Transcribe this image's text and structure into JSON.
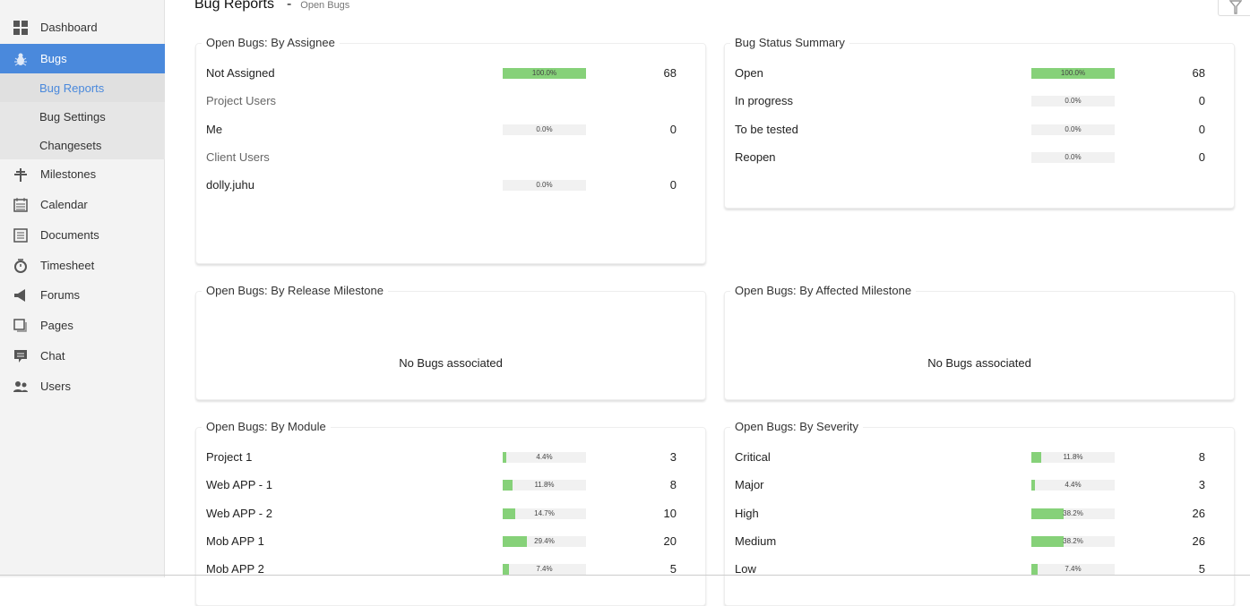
{
  "header": {
    "title": "Bug Reports",
    "separator": "-",
    "breadcrumb": "Open Bugs",
    "filter_icon": "filter-icon"
  },
  "sidebar": {
    "items": [
      {
        "label": "Dashboard",
        "icon": "dashboard-icon"
      },
      {
        "label": "Bugs",
        "icon": "bug-icon",
        "active": true
      },
      {
        "label": "Milestones",
        "icon": "milestone-icon"
      },
      {
        "label": "Calendar",
        "icon": "calendar-icon"
      },
      {
        "label": "Documents",
        "icon": "document-icon"
      },
      {
        "label": "Timesheet",
        "icon": "timer-icon"
      },
      {
        "label": "Forums",
        "icon": "megaphone-icon"
      },
      {
        "label": "Pages",
        "icon": "pages-icon"
      },
      {
        "label": "Chat",
        "icon": "chat-icon"
      },
      {
        "label": "Users",
        "icon": "users-icon"
      }
    ],
    "subitems": [
      {
        "label": "Bug Reports",
        "current": true
      },
      {
        "label": "Bug Settings"
      },
      {
        "label": "Changesets"
      }
    ],
    "active_color": "#4a89dc"
  },
  "bar_color": "#86d179",
  "cards": [
    {
      "title": "Open Bugs: By Assignee",
      "rows": [
        {
          "label": "Not Assigned",
          "percent": "100.0%",
          "value": 100,
          "count": "68"
        },
        {
          "label": "Project Users",
          "header": true
        },
        {
          "label": "Me",
          "percent": "0.0%",
          "value": 0,
          "count": "0"
        },
        {
          "label": "Client Users",
          "header": true
        },
        {
          "label": "dolly.juhu",
          "percent": "0.0%",
          "value": 0,
          "count": "0"
        }
      ]
    },
    {
      "title": "Bug Status Summary",
      "rows": [
        {
          "label": "Open",
          "percent": "100.0%",
          "value": 100,
          "count": "68"
        },
        {
          "label": "In progress",
          "percent": "0.0%",
          "value": 0,
          "count": "0"
        },
        {
          "label": "To be tested",
          "percent": "0.0%",
          "value": 0,
          "count": "0"
        },
        {
          "label": "Reopen",
          "percent": "0.0%",
          "value": 0,
          "count": "0"
        }
      ]
    },
    {
      "title": "Open Bugs: By Release Milestone",
      "empty": "No Bugs associated"
    },
    {
      "title": "Open Bugs: By Affected Milestone",
      "empty": "No Bugs associated"
    },
    {
      "title": "Open Bugs: By Module",
      "rows": [
        {
          "label": "Project 1",
          "percent": "4.4%",
          "value": 4.4,
          "count": "3"
        },
        {
          "label": "Web APP - 1",
          "percent": "11.8%",
          "value": 11.8,
          "count": "8"
        },
        {
          "label": "Web APP - 2",
          "percent": "14.7%",
          "value": 14.7,
          "count": "10"
        },
        {
          "label": "Mob APP 1",
          "percent": "29.4%",
          "value": 29.4,
          "count": "20"
        },
        {
          "label": "Mob APP 2",
          "percent": "7.4%",
          "value": 7.4,
          "count": "5"
        }
      ]
    },
    {
      "title": "Open Bugs: By Severity",
      "rows": [
        {
          "label": "Critical",
          "percent": "11.8%",
          "value": 11.8,
          "count": "8"
        },
        {
          "label": "Major",
          "percent": "4.4%",
          "value": 4.4,
          "count": "3"
        },
        {
          "label": "High",
          "percent": "38.2%",
          "value": 38.2,
          "count": "26"
        },
        {
          "label": "Medium",
          "percent": "38.2%",
          "value": 38.2,
          "count": "26"
        },
        {
          "label": "Low",
          "percent": "7.4%",
          "value": 7.4,
          "count": "5"
        }
      ]
    }
  ]
}
